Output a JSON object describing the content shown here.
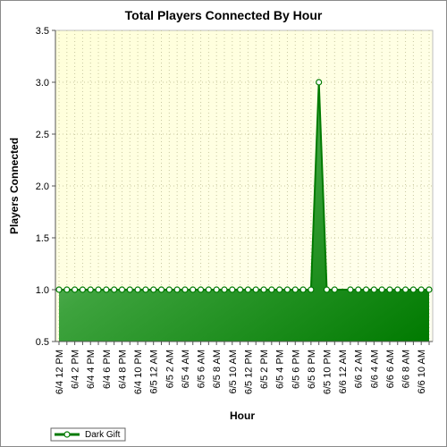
{
  "chart_data": {
    "type": "area",
    "title": "Total Players Connected By Hour",
    "xlabel": "Hour",
    "ylabel": "Players Connected",
    "ylim": [
      0.5,
      3.5
    ],
    "y_ticks": [
      0.5,
      1.0,
      1.5,
      2.0,
      2.5,
      3.0,
      3.5
    ],
    "y_tick_labels": [
      "0.5",
      "1.0",
      "1.5",
      "2.0",
      "2.5",
      "3.0",
      "3.5"
    ],
    "x_tick_labels": [
      "6/4 12 PM",
      "6/4 2 PM",
      "6/4 4 PM",
      "6/4 6 PM",
      "6/4 8 PM",
      "6/4 10 PM",
      "6/5 12 AM",
      "6/5 2 AM",
      "6/5 4 AM",
      "6/5 6 AM",
      "6/5 8 AM",
      "6/5 10 AM",
      "6/5 12 PM",
      "6/5 2 PM",
      "6/5 4 PM",
      "6/5 6 PM",
      "6/5 8 PM",
      "6/5 10 PM",
      "6/6 12 AM",
      "6/6 2 AM",
      "6/6 4 AM",
      "6/6 6 AM",
      "6/6 8 AM",
      "6/6 10 AM"
    ],
    "grid": true,
    "legend_position": "bottom-left",
    "series": [
      {
        "name": "Dark Gift",
        "color": "#007a00",
        "points": [
          {
            "x": "6/4 12 PM",
            "y": 1
          },
          {
            "x": "6/4 1 PM",
            "y": 1
          },
          {
            "x": "6/4 2 PM",
            "y": 1
          },
          {
            "x": "6/4 3 PM",
            "y": 1
          },
          {
            "x": "6/4 4 PM",
            "y": 1
          },
          {
            "x": "6/4 5 PM",
            "y": 1
          },
          {
            "x": "6/4 6 PM",
            "y": 1
          },
          {
            "x": "6/4 7 PM",
            "y": 1
          },
          {
            "x": "6/4 8 PM",
            "y": 1
          },
          {
            "x": "6/4 9 PM",
            "y": 1
          },
          {
            "x": "6/4 10 PM",
            "y": 1
          },
          {
            "x": "6/4 11 PM",
            "y": 1
          },
          {
            "x": "6/5 12 AM",
            "y": 1
          },
          {
            "x": "6/5 1 AM",
            "y": 1
          },
          {
            "x": "6/5 2 AM",
            "y": 1
          },
          {
            "x": "6/5 3 AM",
            "y": 1
          },
          {
            "x": "6/5 4 AM",
            "y": 1
          },
          {
            "x": "6/5 5 AM",
            "y": 1
          },
          {
            "x": "6/5 6 AM",
            "y": 1
          },
          {
            "x": "6/5 7 AM",
            "y": 1
          },
          {
            "x": "6/5 8 AM",
            "y": 1
          },
          {
            "x": "6/5 9 AM",
            "y": 1
          },
          {
            "x": "6/5 10 AM",
            "y": 1
          },
          {
            "x": "6/5 11 AM",
            "y": 1
          },
          {
            "x": "6/5 12 PM",
            "y": 1
          },
          {
            "x": "6/5 1 PM",
            "y": 1
          },
          {
            "x": "6/5 2 PM",
            "y": 1
          },
          {
            "x": "6/5 3 PM",
            "y": 1
          },
          {
            "x": "6/5 4 PM",
            "y": 1
          },
          {
            "x": "6/5 5 PM",
            "y": 1
          },
          {
            "x": "6/5 6 PM",
            "y": 1
          },
          {
            "x": "6/5 7 PM",
            "y": 1
          },
          {
            "x": "6/5 8 PM",
            "y": 1
          },
          {
            "x": "6/5 9 PM",
            "y": 3
          },
          {
            "x": "6/5 10 PM",
            "y": 1
          },
          {
            "x": "6/5 11 PM",
            "y": 1
          },
          {
            "x": "6/6 1 AM",
            "y": 1
          },
          {
            "x": "6/6 2 AM",
            "y": 1
          },
          {
            "x": "6/6 3 AM",
            "y": 1
          },
          {
            "x": "6/6 4 AM",
            "y": 1
          },
          {
            "x": "6/6 5 AM",
            "y": 1
          },
          {
            "x": "6/6 6 AM",
            "y": 1
          },
          {
            "x": "6/6 7 AM",
            "y": 1
          },
          {
            "x": "6/6 8 AM",
            "y": 1
          },
          {
            "x": "6/6 9 AM",
            "y": 1
          },
          {
            "x": "6/6 10 AM",
            "y": 1
          },
          {
            "x": "6/6 11 AM",
            "y": 1
          }
        ]
      }
    ]
  }
}
